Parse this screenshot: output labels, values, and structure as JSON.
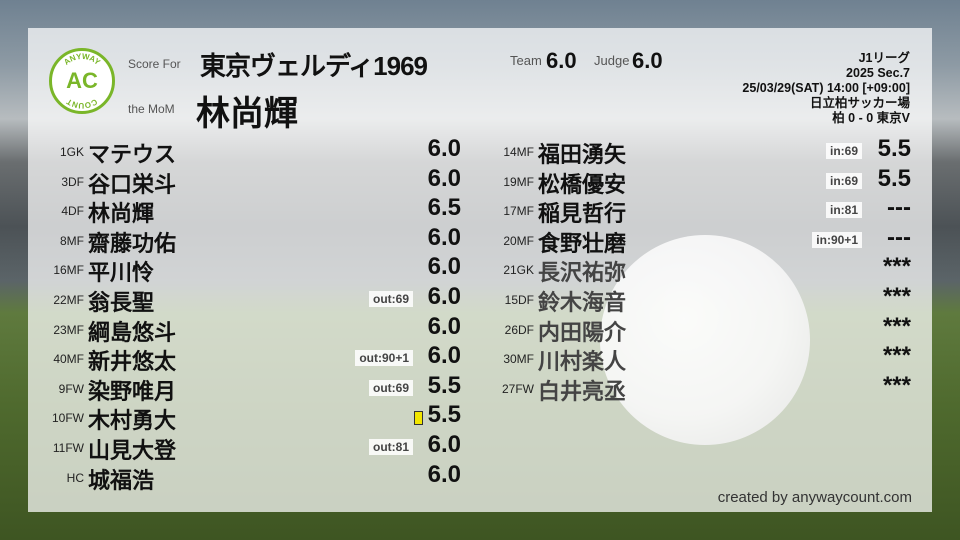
{
  "header": {
    "score_for_label": "Score For",
    "mom_label": "the MoM",
    "team_name": "東京ヴェルディ1969",
    "mom_name": "林尚輝",
    "team_label": "Team",
    "team_score": "6.0",
    "judge_label": "Judge",
    "judge_score": "6.0"
  },
  "logo": {
    "top_text": "ANYWAY",
    "center_text": "AC",
    "bottom_text": "COUNT",
    "color": "#7ab629"
  },
  "match": {
    "league": "J1リーグ",
    "section": "2025 Sec.7",
    "datetime": "25/03/29(SAT) 14:00 [+09:00]",
    "venue": "日立柏サッカー場",
    "result": "柏 0 - 0 東京V"
  },
  "left_players": [
    {
      "np": "1GK",
      "name": "マテウス",
      "score": "6.0",
      "badge": ""
    },
    {
      "np": "3DF",
      "name": "谷口栄斗",
      "score": "6.0",
      "badge": ""
    },
    {
      "np": "4DF",
      "name": "林尚輝",
      "score": "6.5",
      "badge": ""
    },
    {
      "np": "8MF",
      "name": "齋藤功佑",
      "score": "6.0",
      "badge": ""
    },
    {
      "np": "16MF",
      "name": "平川怜",
      "score": "6.0",
      "badge": ""
    },
    {
      "np": "22MF",
      "name": "翁長聖",
      "score": "6.0",
      "badge": "out:69"
    },
    {
      "np": "23MF",
      "name": "綱島悠斗",
      "score": "6.0",
      "badge": ""
    },
    {
      "np": "40MF",
      "name": "新井悠太",
      "score": "6.0",
      "badge": "out:90+1"
    },
    {
      "np": "9FW",
      "name": "染野唯月",
      "score": "5.5",
      "badge": "out:69"
    },
    {
      "np": "10FW",
      "name": "木村勇大",
      "score": "5.5",
      "badge": "",
      "yellow_card": true
    },
    {
      "np": "11FW",
      "name": "山見大登",
      "score": "6.0",
      "badge": "out:81"
    },
    {
      "np": "HC",
      "name": "城福浩",
      "score": "6.0",
      "badge": ""
    }
  ],
  "right_players": [
    {
      "np": "14MF",
      "name": "福田湧矢",
      "score": "5.5",
      "badge": "in:69"
    },
    {
      "np": "19MF",
      "name": "松橋優安",
      "score": "5.5",
      "badge": "in:69"
    },
    {
      "np": "17MF",
      "name": "稲見哲行",
      "score": "---",
      "badge": "in:81"
    },
    {
      "np": "20MF",
      "name": "食野壮磨",
      "score": "---",
      "badge": "in:90+1"
    },
    {
      "np": "21GK",
      "name": "長沢祐弥",
      "score": "***",
      "badge": "",
      "unused": true
    },
    {
      "np": "15DF",
      "name": "鈴木海音",
      "score": "***",
      "badge": "",
      "unused": true
    },
    {
      "np": "26DF",
      "name": "内田陽介",
      "score": "***",
      "badge": "",
      "unused": true
    },
    {
      "np": "30MF",
      "name": "川村楽人",
      "score": "***",
      "badge": "",
      "unused": true
    },
    {
      "np": "27FW",
      "name": "白井亮丞",
      "score": "***",
      "badge": "",
      "unused": true
    }
  ],
  "footer": {
    "credit": "created by anywaycount.com"
  }
}
